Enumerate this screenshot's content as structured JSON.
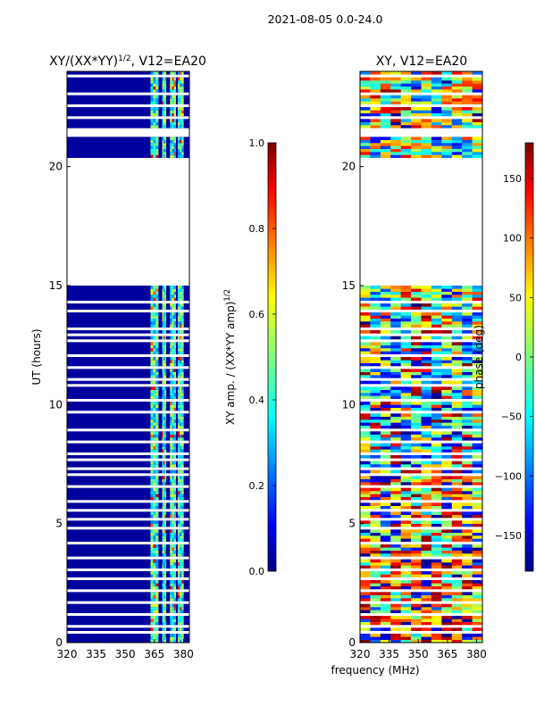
{
  "figure": {
    "suptitle": "2021-08-05 0.0-24.0",
    "xlabel_shared": "frequency (MHz)"
  },
  "chart_data": [
    {
      "type": "heatmap",
      "title_main": "XY/(XX*YY)",
      "title_sup": "1/2",
      "title_tail": ", V12=EA20",
      "ylabel": "UT (hours)",
      "xlim": [
        320,
        383
      ],
      "ylim": [
        0,
        24
      ],
      "xticks": [
        320,
        335,
        350,
        365,
        380
      ],
      "yticks": [
        0,
        5,
        10,
        15,
        20
      ],
      "blank_hours": [
        [
          15.0,
          20.0
        ]
      ],
      "high_freq_bands": [
        [
          363,
          367
        ],
        [
          369,
          371
        ],
        [
          373,
          376
        ],
        [
          377,
          380
        ]
      ],
      "colorbar": {
        "label_main": "XY amp. / (XX*YY amp)",
        "label_sup": "1/2",
        "range": [
          0.0,
          1.0
        ],
        "ticks": [
          "0.0",
          "0.2",
          "0.4",
          "0.6",
          "0.8",
          "1.0"
        ],
        "colormap": "jet"
      }
    },
    {
      "type": "heatmap",
      "title": "XY, V12=EA20",
      "ylabel": "",
      "xlim": [
        320,
        383
      ],
      "ylim": [
        0,
        24
      ],
      "xticks": [
        320,
        335,
        350,
        365,
        380
      ],
      "yticks": [
        0,
        5,
        10,
        15,
        20
      ],
      "blank_hours": [
        [
          15.0,
          20.0
        ]
      ],
      "colorbar": {
        "label": "phase (deg)",
        "range": [
          -180,
          180
        ],
        "ticks": [
          "−150",
          "−100",
          "−50",
          "0",
          "50",
          "100",
          "150"
        ],
        "colormap": "jet"
      }
    }
  ]
}
